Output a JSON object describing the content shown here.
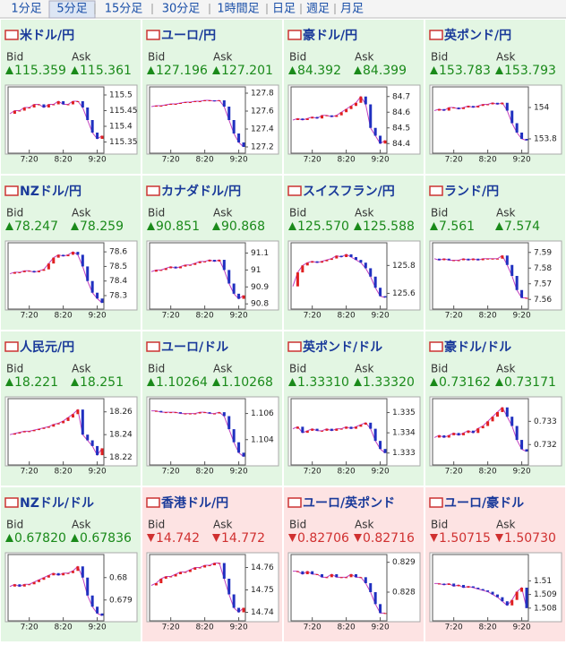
{
  "tabs": [
    "1分足",
    "5分足",
    "15分足",
    "30分足",
    "1時間足",
    "日足",
    "週足",
    "月足"
  ],
  "active_tab": 1,
  "bid_label": "Bid",
  "ask_label": "Ask",
  "xlim": [
    0,
    19
  ],
  "xticks": [
    {
      "value": 4,
      "label": "7:20"
    },
    {
      "value": 11,
      "label": "8:20"
    },
    {
      "value": 18,
      "label": "9:20"
    }
  ],
  "tiles": [
    {
      "name": "米ドル/円",
      "trend": "up",
      "bid": "115.359",
      "ask": "115.361",
      "ylim": [
        115.32,
        115.52
      ],
      "yticks": [
        115.5,
        115.45,
        115.4,
        115.35
      ],
      "closes": [
        115.44,
        115.45,
        115.45,
        115.46,
        115.46,
        115.47,
        115.47,
        115.46,
        115.47,
        115.47,
        115.48,
        115.47,
        115.47,
        115.48,
        115.48,
        115.46,
        115.42,
        115.38,
        115.36,
        115.37
      ]
    },
    {
      "name": "ユーロ/円",
      "trend": "up",
      "bid": "127.196",
      "ask": "127.201",
      "ylim": [
        127.15,
        127.85
      ],
      "yticks": [
        127.8,
        127.6,
        127.4,
        127.2
      ],
      "closes": [
        127.65,
        127.66,
        127.66,
        127.67,
        127.68,
        127.68,
        127.69,
        127.7,
        127.7,
        127.71,
        127.71,
        127.72,
        127.72,
        127.71,
        127.72,
        127.65,
        127.5,
        127.35,
        127.25,
        127.2
      ]
    },
    {
      "name": "豪ドル/円",
      "trend": "up",
      "bid": "84.392",
      "ask": "84.399",
      "ylim": [
        84.35,
        84.75
      ],
      "yticks": [
        84.7,
        84.6,
        84.5,
        84.4
      ],
      "closes": [
        84.55,
        84.56,
        84.55,
        84.56,
        84.57,
        84.56,
        84.58,
        84.58,
        84.57,
        84.58,
        84.6,
        84.62,
        84.64,
        84.66,
        84.7,
        84.65,
        84.5,
        84.45,
        84.4,
        84.42
      ]
    },
    {
      "name": "英ポンド/円",
      "trend": "up",
      "bid": "153.783",
      "ask": "153.793",
      "ylim": [
        153.72,
        154.12
      ],
      "yticks": [
        154,
        153.8
      ],
      "closes": [
        153.98,
        153.99,
        153.98,
        154,
        154,
        153.99,
        154,
        154.01,
        154,
        154.01,
        154.02,
        154.02,
        154.03,
        154.02,
        154.03,
        153.98,
        153.9,
        153.84,
        153.8,
        153.79
      ]
    },
    {
      "name": "NZドル/円",
      "trend": "up",
      "bid": "78.247",
      "ask": "78.259",
      "ylim": [
        78.22,
        78.65
      ],
      "yticks": [
        78.6,
        78.5,
        78.4,
        78.3
      ],
      "closes": [
        78.45,
        78.46,
        78.46,
        78.47,
        78.47,
        78.46,
        78.47,
        78.48,
        78.52,
        78.56,
        78.58,
        78.57,
        78.58,
        78.6,
        78.58,
        78.5,
        78.4,
        78.32,
        78.28,
        78.25
      ]
    },
    {
      "name": "カナダドル/円",
      "trend": "up",
      "bid": "90.851",
      "ask": "90.868",
      "ylim": [
        90.78,
        91.15
      ],
      "yticks": [
        91.1,
        91,
        90.9,
        90.8
      ],
      "closes": [
        90.99,
        91,
        91,
        91.01,
        91.02,
        91.01,
        91.02,
        91.03,
        91.03,
        91.04,
        91.05,
        91.05,
        91.06,
        91.05,
        91.06,
        91,
        90.92,
        90.86,
        90.83,
        90.85
      ]
    },
    {
      "name": "スイスフラン/円",
      "trend": "up",
      "bid": "125.570",
      "ask": "125.588",
      "ylim": [
        125.5,
        125.95
      ],
      "yticks": [
        125.8,
        125.6
      ],
      "closes": [
        125.65,
        125.75,
        125.8,
        125.82,
        125.83,
        125.82,
        125.83,
        125.84,
        125.85,
        125.87,
        125.86,
        125.88,
        125.86,
        125.84,
        125.82,
        125.78,
        125.72,
        125.64,
        125.58,
        125.57
      ]
    },
    {
      "name": "ランド/円",
      "trend": "up",
      "bid": "7.561",
      "ask": "7.574",
      "ylim": [
        7.555,
        7.595
      ],
      "yticks": [
        7.59,
        7.58,
        7.57,
        7.56
      ],
      "closes": [
        7.586,
        7.585,
        7.586,
        7.585,
        7.585,
        7.585,
        7.586,
        7.585,
        7.586,
        7.585,
        7.586,
        7.586,
        7.586,
        7.586,
        7.588,
        7.582,
        7.575,
        7.566,
        7.561,
        7.561
      ]
    },
    {
      "name": "人民元/円",
      "trend": "up",
      "bid": "18.221",
      "ask": "18.251",
      "ylim": [
        18.215,
        18.27
      ],
      "yticks": [
        18.26,
        18.24,
        18.22
      ],
      "closes": [
        18.24,
        18.241,
        18.242,
        18.243,
        18.243,
        18.244,
        18.245,
        18.246,
        18.247,
        18.249,
        18.25,
        18.252,
        18.255,
        18.258,
        18.262,
        18.24,
        18.235,
        18.23,
        18.222,
        18.228
      ]
    },
    {
      "name": "ユーロ/ドル",
      "trend": "up",
      "bid": "1.10264",
      "ask": "1.10268",
      "ylim": [
        1.1022,
        1.107
      ],
      "yticks": [
        1.106,
        1.104
      ],
      "closes": [
        1.1062,
        1.1062,
        1.1061,
        1.1061,
        1.1061,
        1.1061,
        1.106,
        1.106,
        1.106,
        1.106,
        1.1061,
        1.1061,
        1.106,
        1.106,
        1.1061,
        1.1058,
        1.1048,
        1.1038,
        1.103,
        1.1027
      ]
    },
    {
      "name": "英ポンド/ドル",
      "trend": "up",
      "bid": "1.33310",
      "ask": "1.33320",
      "ylim": [
        1.3325,
        1.3356
      ],
      "yticks": [
        1.335,
        1.334,
        1.333
      ],
      "closes": [
        1.3342,
        1.3343,
        1.334,
        1.3341,
        1.3342,
        1.3341,
        1.3341,
        1.3342,
        1.3341,
        1.3342,
        1.3342,
        1.3343,
        1.3342,
        1.3343,
        1.3344,
        1.3345,
        1.3342,
        1.3336,
        1.3332,
        1.333
      ]
    },
    {
      "name": "豪ドル/ドル",
      "trend": "up",
      "bid": "0.73162",
      "ask": "0.73171",
      "ylim": [
        0.7312,
        0.7339
      ],
      "yticks": [
        0.733,
        0.732
      ],
      "closes": [
        0.7323,
        0.7324,
        0.7323,
        0.7324,
        0.7325,
        0.7324,
        0.7325,
        0.7326,
        0.7325,
        0.7327,
        0.7328,
        0.733,
        0.7332,
        0.7334,
        0.7336,
        0.7332,
        0.7328,
        0.7322,
        0.7318,
        0.7317
      ]
    },
    {
      "name": "NZドル/ドル",
      "trend": "up",
      "bid": "0.67820",
      "ask": "0.67836",
      "ylim": [
        0.67815,
        0.68095
      ],
      "yticks": [
        0.68,
        0.679
      ],
      "closes": [
        0.6796,
        0.6797,
        0.6796,
        0.6797,
        0.6797,
        0.6798,
        0.6799,
        0.68,
        0.6801,
        0.6802,
        0.6801,
        0.6802,
        0.6802,
        0.6803,
        0.6805,
        0.68,
        0.6792,
        0.6787,
        0.6784,
        0.6783
      ]
    },
    {
      "name": "香港ドル/円",
      "trend": "down",
      "bid": "14.742",
      "ask": "14.772",
      "ylim": [
        14.737,
        14.765
      ],
      "yticks": [
        14.76,
        14.75,
        14.74
      ],
      "closes": [
        14.752,
        14.753,
        14.755,
        14.756,
        14.756,
        14.757,
        14.758,
        14.758,
        14.759,
        14.76,
        14.76,
        14.761,
        14.761,
        14.762,
        14.762,
        14.755,
        14.748,
        14.742,
        14.74,
        14.742
      ]
    },
    {
      "name": "ユーロ/英ポンド",
      "trend": "down",
      "bid": "0.82706",
      "ask": "0.82716",
      "ylim": [
        0.8271,
        0.8292
      ],
      "yticks": [
        0.829,
        0.828
      ],
      "closes": [
        0.8287,
        0.8287,
        0.8286,
        0.8287,
        0.8286,
        0.8286,
        0.8285,
        0.8285,
        0.8286,
        0.8285,
        0.8285,
        0.8285,
        0.8286,
        0.8285,
        0.8285,
        0.8283,
        0.828,
        0.8276,
        0.8273,
        0.8273
      ]
    },
    {
      "name": "ユーロ/豪ドル",
      "trend": "down",
      "bid": "1.50715",
      "ask": "1.50730",
      "ylim": [
        1.5072,
        1.5118
      ],
      "yticks": [
        1.51,
        1.509,
        1.508
      ],
      "closes": [
        1.5098,
        1.5098,
        1.5097,
        1.5098,
        1.5096,
        1.5097,
        1.5095,
        1.5096,
        1.5095,
        1.5094,
        1.5093,
        1.5092,
        1.509,
        1.5088,
        1.5085,
        1.5082,
        1.5086,
        1.5092,
        1.5095,
        1.508
      ]
    }
  ]
}
